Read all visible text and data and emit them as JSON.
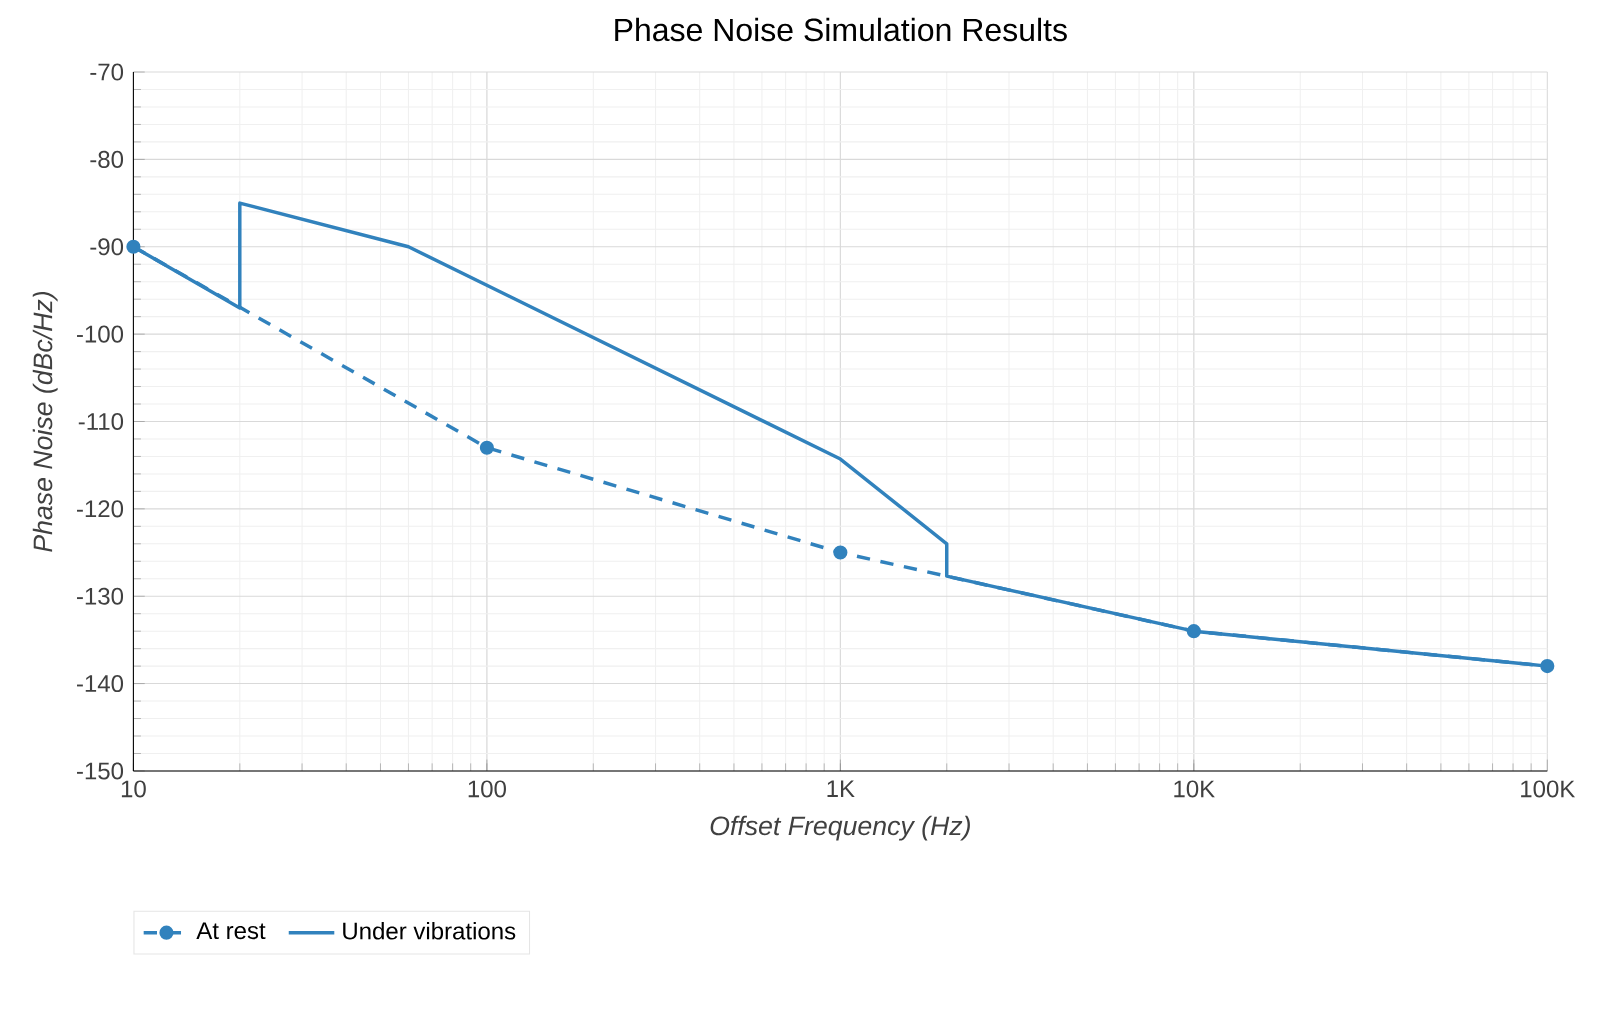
{
  "chart_data": {
    "type": "line",
    "title": "Phase Noise Simulation Results",
    "xlabel": "Offset Frequency (Hz)",
    "ylabel": "Phase Noise (dBc/Hz)",
    "log": "x",
    "grid": true,
    "legend": "bottom left",
    "xlim": [
      10,
      100000
    ],
    "ylim": [
      -150,
      -70
    ],
    "xticks": [
      10,
      100,
      {
        "value": 1000,
        "label": "1K"
      },
      {
        "value": 10000,
        "label": "10K"
      },
      {
        "value": 100000,
        "label": "100K"
      }
    ],
    "yticks": [
      -150,
      -140,
      -130,
      -120,
      -110,
      -100,
      -90,
      -80,
      -70
    ],
    "series": [
      {
        "name": "At rest",
        "color": "#3182bd",
        "line_style": "dashed",
        "marker": "circle",
        "x": [
          10,
          100,
          1000,
          10000,
          100000
        ],
        "values": [
          -90,
          -113,
          -125,
          -134,
          -138
        ]
      },
      {
        "name": "Under vibrations",
        "color": "#3182bd",
        "line_style": "solid",
        "marker": "none",
        "x": [
          10,
          20,
          20,
          60,
          1000,
          2000,
          2000,
          10000,
          100000
        ],
        "values": [
          -90,
          -97,
          -85,
          -90,
          -114.3,
          -124,
          -127.7,
          -134,
          -138
        ]
      }
    ]
  }
}
